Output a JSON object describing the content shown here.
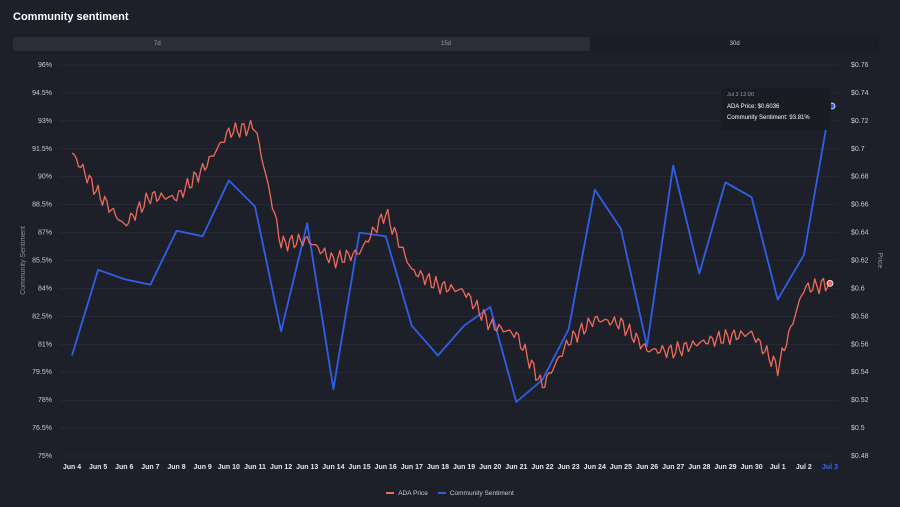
{
  "header": {
    "title": "Community sentiment"
  },
  "range_tabs": [
    {
      "label": "7d",
      "active": false
    },
    {
      "label": "15d",
      "active": false
    },
    {
      "label": "30d",
      "active": true
    }
  ],
  "tooltip": {
    "date": "Jul 3 12:00",
    "price_label": "ADA Price: $0.6036",
    "sentiment_label": "Community Sentiment: 93.81%"
  },
  "legend": [
    {
      "name": "ADA Price",
      "color": "#f06a5c"
    },
    {
      "name": "Community Sentiment",
      "color": "#2f5fe6"
    }
  ],
  "chart_data": {
    "type": "line",
    "x": [
      "Jun 4",
      "Jun 5",
      "Jun 6",
      "Jun 7",
      "Jun 8",
      "Jun 9",
      "Jun 10",
      "Jun 11",
      "Jun 12",
      "Jun 13",
      "Jun 14",
      "Jun 15",
      "Jun 16",
      "Jun 17",
      "Jun 18",
      "Jun 19",
      "Jun 20",
      "Jun 21",
      "Jun 22",
      "Jun 23",
      "Jun 24",
      "Jun 25",
      "Jun 26",
      "Jun 27",
      "Jun 28",
      "Jun 29",
      "Jun 30",
      "Jul 1",
      "Jul 2",
      "Jul 3"
    ],
    "x_tick_labels": [
      "Jun 4",
      "Jun 5",
      "Jun 6",
      "Jun 7",
      "Jun 8",
      "Jun 9",
      "Jun 10",
      "Jun 11",
      "Jun 12",
      "Jun 13",
      "Jun 14",
      "Jun 15",
      "Jun 16",
      "Jun 17",
      "Jun 18",
      "Jun 19",
      "Jun 20",
      "Jun 21",
      "Jun 22",
      "Jun 23",
      "Jun 24",
      "Jun 25",
      "Jun 26",
      "Jun 27",
      "Jun 28",
      "Jun 29",
      "Jun 30",
      "Jul 1",
      "Jul 2",
      "Jul 3"
    ],
    "y_left": {
      "label": "Community Sentiment",
      "ticks": [
        "75%",
        "76.5%",
        "78%",
        "79.5%",
        "81%",
        "82.5%",
        "84%",
        "85.5%",
        "87%",
        "88.5%",
        "90%",
        "91.5%",
        "93%",
        "94.5%",
        "96%"
      ],
      "range": [
        75,
        96
      ]
    },
    "y_right": {
      "label": "Price",
      "ticks": [
        "$0.48",
        "$0.5",
        "$0.52",
        "$0.54",
        "$0.56",
        "$0.58",
        "$0.6",
        "$0.62",
        "$0.64",
        "$0.66",
        "$0.68",
        "$0.7",
        "$0.72",
        "$0.74",
        "$0.76"
      ],
      "range": [
        0.48,
        0.76
      ]
    },
    "grid": true,
    "legend_position": "bottom-center",
    "series": [
      {
        "name": "Community Sentiment",
        "axis": "left",
        "color": "#2f5fe6",
        "values": [
          80.4,
          85.0,
          84.5,
          84.2,
          87.1,
          86.8,
          89.8,
          88.4,
          81.7,
          87.5,
          78.6,
          87.0,
          86.8,
          82.0,
          80.4,
          82.0,
          83.0,
          77.9,
          79.1,
          81.8,
          89.3,
          87.2,
          80.9,
          90.6,
          84.8,
          89.7,
          88.9,
          83.4,
          85.8,
          93.81
        ]
      },
      {
        "name": "ADA Price",
        "axis": "right",
        "color": "#f06a5c",
        "values": [
          0.697,
          0.668,
          0.645,
          0.666,
          0.665,
          0.685,
          0.712,
          0.716,
          0.632,
          0.635,
          0.62,
          0.626,
          0.654,
          0.613,
          0.602,
          0.598,
          0.574,
          0.567,
          0.53,
          0.562,
          0.578,
          0.575,
          0.556,
          0.555,
          0.561,
          0.565,
          0.568,
          0.543,
          0.6,
          0.6036
        ]
      }
    ]
  }
}
